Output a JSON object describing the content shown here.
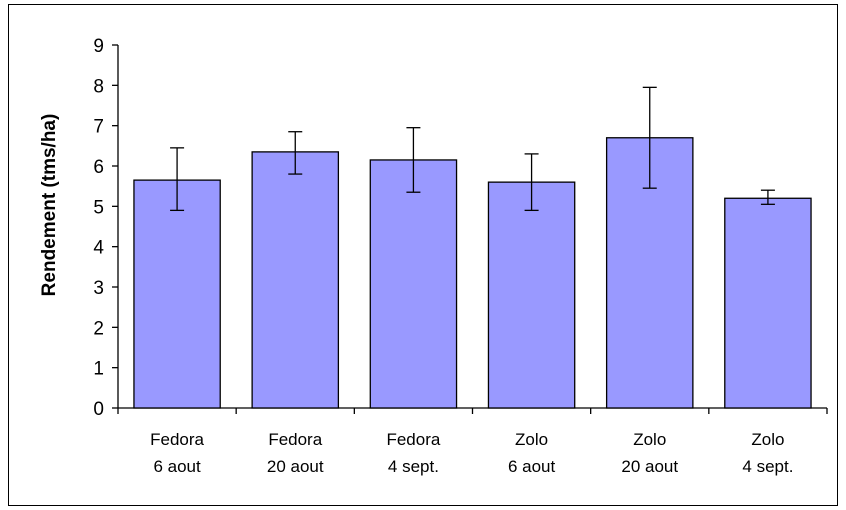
{
  "chart_data": {
    "type": "bar",
    "title": "",
    "xlabel": "",
    "ylabel": "Rendement (tms/ha)",
    "ylim": [
      0,
      9
    ],
    "yticks": [
      0,
      1,
      2,
      3,
      4,
      5,
      6,
      7,
      8,
      9
    ],
    "grid": false,
    "legend": "none",
    "bar_color": "#9999ff",
    "categories": [
      [
        "Fedora",
        "6 aout"
      ],
      [
        "Fedora",
        "20 aout"
      ],
      [
        "Fedora",
        "4 sept."
      ],
      [
        "Zolo",
        "6 aout"
      ],
      [
        "Zolo",
        "20 aout"
      ],
      [
        "Zolo",
        "4 sept."
      ]
    ],
    "values": [
      5.65,
      6.35,
      6.15,
      5.6,
      6.7,
      5.2
    ],
    "error_low": [
      4.9,
      5.8,
      5.35,
      4.9,
      5.45,
      5.05
    ],
    "error_high": [
      6.45,
      6.85,
      6.95,
      6.3,
      7.95,
      5.4
    ]
  }
}
